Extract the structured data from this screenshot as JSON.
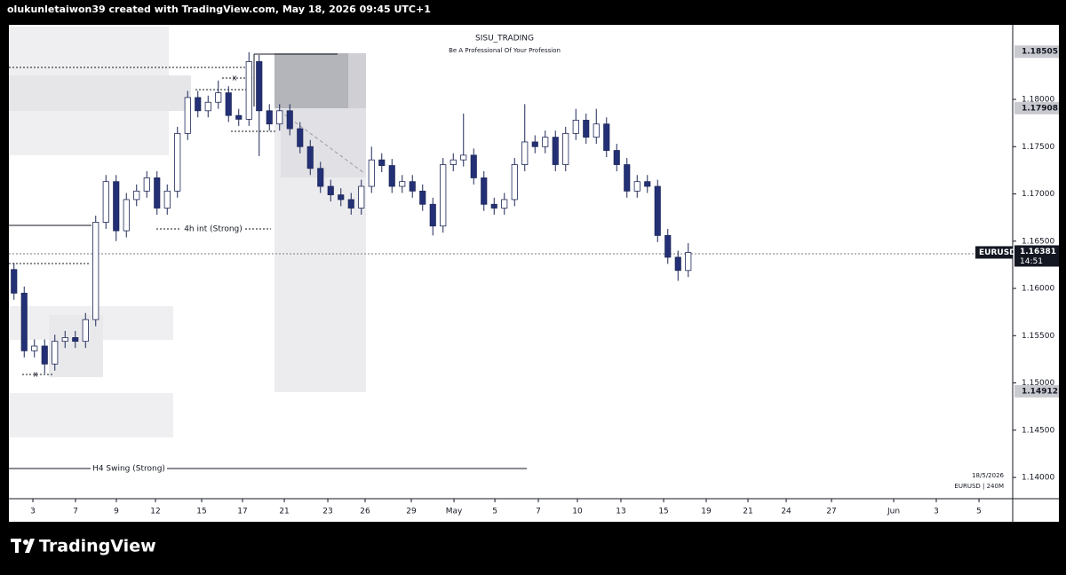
{
  "chart_data": {
    "type": "candlestick",
    "header": "olukunletaiwon39 created with TradingView.com, May 18, 2026 09:45 UTC+1",
    "title": "SISU_TRADING",
    "subtitle": "Be A Professional Of Your Profession",
    "annotations": [
      "4h int (Strong)",
      "H4 Swing (Strong)",
      "x",
      "x"
    ],
    "date_stamp": "18/5/2026",
    "chart_info": "EURUSD | 240M",
    "symbol": "EURUSD",
    "last_price": 1.16381,
    "countdown": "14:51",
    "marked_prices": [
      1.18505,
      1.17908,
      1.14912
    ],
    "brand": "TradingView",
    "up_color": "#ffffff",
    "down_color": "#233076",
    "border_color": "#1e2858",
    "x": [
      0,
      1,
      2,
      3,
      4,
      5,
      6,
      7,
      8,
      9,
      10,
      11,
      12,
      13,
      14,
      15,
      16,
      17,
      18,
      19,
      20,
      21,
      22,
      23,
      24,
      25,
      26,
      27,
      28,
      29,
      30,
      31,
      32,
      33,
      34,
      35,
      36,
      37,
      38,
      39,
      40,
      41,
      42,
      43,
      44,
      45,
      46,
      47,
      48,
      49,
      50,
      51,
      52,
      53,
      54,
      55,
      56,
      57,
      58,
      59,
      60,
      61,
      62,
      63,
      64,
      65,
      66
    ],
    "open": [
      1.162,
      1.1595,
      1.1534,
      1.1539,
      1.152,
      1.1544,
      1.1548,
      1.1544,
      1.1567,
      1.167,
      1.1713,
      1.1661,
      1.1694,
      1.1703,
      1.1717,
      1.1685,
      1.1703,
      1.1764,
      1.1802,
      1.1788,
      1.1797,
      1.1807,
      1.1783,
      1.1779,
      1.184,
      1.1788,
      1.1774,
      1.1788,
      1.1769,
      1.175,
      1.1727,
      1.1708,
      1.1699,
      1.1694,
      1.1685,
      1.1708,
      1.1736,
      1.173,
      1.1708,
      1.1713,
      1.1703,
      1.1689,
      1.1666,
      1.1731,
      1.1736,
      1.1741,
      1.1717,
      1.1689,
      1.1685,
      1.1694,
      1.1731,
      1.1755,
      1.175,
      1.176,
      1.1731,
      1.1764,
      1.1778,
      1.176,
      1.1774,
      1.1746,
      1.1731,
      1.1703,
      1.1713,
      1.1708,
      1.1656,
      1.1633,
      1.1619
    ],
    "high": [
      1.1627,
      1.1602,
      1.1546,
      1.1546,
      1.1551,
      1.1555,
      1.1555,
      1.1574,
      1.1677,
      1.172,
      1.172,
      1.1701,
      1.171,
      1.1724,
      1.1724,
      1.171,
      1.1771,
      1.1809,
      1.1809,
      1.1804,
      1.182,
      1.1814,
      1.179,
      1.185,
      1.1847,
      1.1795,
      1.1795,
      1.1795,
      1.1776,
      1.1757,
      1.1734,
      1.1715,
      1.1706,
      1.1701,
      1.1715,
      1.175,
      1.1743,
      1.1737,
      1.172,
      1.172,
      1.171,
      1.1696,
      1.1738,
      1.1743,
      1.1785,
      1.1748,
      1.1724,
      1.1696,
      1.1701,
      1.1738,
      1.1795,
      1.1762,
      1.1767,
      1.1767,
      1.1771,
      1.179,
      1.1785,
      1.179,
      1.1781,
      1.1753,
      1.1738,
      1.172,
      1.172,
      1.1715,
      1.1663,
      1.164,
      1.1648
    ],
    "low": [
      1.1588,
      1.1527,
      1.1527,
      1.151,
      1.1513,
      1.1537,
      1.1537,
      1.1537,
      1.156,
      1.1663,
      1.165,
      1.1654,
      1.1687,
      1.1696,
      1.1678,
      1.1678,
      1.1696,
      1.1757,
      1.1781,
      1.1781,
      1.179,
      1.1776,
      1.1772,
      1.1772,
      1.174,
      1.1767,
      1.1767,
      1.1762,
      1.1743,
      1.172,
      1.1701,
      1.1692,
      1.1687,
      1.1678,
      1.1678,
      1.1701,
      1.1723,
      1.1701,
      1.1701,
      1.1696,
      1.1682,
      1.1656,
      1.1659,
      1.1724,
      1.1729,
      1.171,
      1.1682,
      1.1678,
      1.1678,
      1.1687,
      1.1724,
      1.1743,
      1.1743,
      1.1724,
      1.1724,
      1.1757,
      1.1753,
      1.1753,
      1.1739,
      1.1724,
      1.1696,
      1.1696,
      1.1701,
      1.1649,
      1.1626,
      1.1608,
      1.1612
    ],
    "close": [
      1.1595,
      1.1534,
      1.1539,
      1.152,
      1.1544,
      1.1548,
      1.1544,
      1.1567,
      1.167,
      1.1713,
      1.1661,
      1.1694,
      1.1703,
      1.1717,
      1.1685,
      1.1703,
      1.1764,
      1.1802,
      1.1788,
      1.1797,
      1.1807,
      1.1783,
      1.1779,
      1.184,
      1.1788,
      1.1774,
      1.1788,
      1.1769,
      1.175,
      1.1727,
      1.1708,
      1.1699,
      1.1694,
      1.1685,
      1.1708,
      1.1736,
      1.173,
      1.1708,
      1.1713,
      1.1703,
      1.1689,
      1.1666,
      1.1731,
      1.1736,
      1.1741,
      1.1717,
      1.1689,
      1.1685,
      1.1694,
      1.1731,
      1.1755,
      1.175,
      1.176,
      1.1731,
      1.1764,
      1.1778,
      1.176,
      1.1774,
      1.1746,
      1.1731,
      1.1703,
      1.1713,
      1.1708,
      1.1656,
      1.1633,
      1.1619,
      1.1638
    ],
    "xlim": [
      -0.5,
      97.76
    ],
    "xticks": [
      {
        "value": 1.85,
        "label": "3"
      },
      {
        "value": 6.02,
        "label": "7"
      },
      {
        "value": 10.02,
        "label": "9"
      },
      {
        "value": 13.85,
        "label": "12"
      },
      {
        "value": 18.37,
        "label": "15"
      },
      {
        "value": 22.37,
        "label": "17"
      },
      {
        "value": 26.46,
        "label": "21"
      },
      {
        "value": 30.72,
        "label": "23"
      },
      {
        "value": 34.37,
        "label": "26"
      },
      {
        "value": 38.89,
        "label": "29"
      },
      {
        "value": 43.07,
        "label": "May"
      },
      {
        "value": 47.07,
        "label": "5"
      },
      {
        "value": 51.33,
        "label": "7"
      },
      {
        "value": 55.15,
        "label": "10"
      },
      {
        "value": 59.41,
        "label": "13"
      },
      {
        "value": 63.59,
        "label": "15"
      },
      {
        "value": 67.76,
        "label": "19"
      },
      {
        "value": 71.85,
        "label": "21"
      },
      {
        "value": 75.59,
        "label": "24"
      },
      {
        "value": 80.02,
        "label": "27"
      },
      {
        "value": 86.11,
        "label": "Jun"
      },
      {
        "value": 90.28,
        "label": "3"
      },
      {
        "value": 94.46,
        "label": "5"
      }
    ],
    "ylim": [
      1.13775,
      1.18789
    ],
    "yticks": [
      {
        "value": 1.14,
        "label": "1.14000"
      },
      {
        "value": 1.145,
        "label": "1.14500"
      },
      {
        "value": 1.15,
        "label": "1.15000"
      },
      {
        "value": 1.155,
        "label": "1.15500"
      },
      {
        "value": 1.16,
        "label": "1.16000"
      },
      {
        "value": 1.165,
        "label": "1.16500"
      },
      {
        "value": 1.17,
        "label": "1.17000"
      },
      {
        "value": 1.175,
        "label": "1.17500"
      },
      {
        "value": 1.18,
        "label": "1.18000"
      }
    ]
  }
}
